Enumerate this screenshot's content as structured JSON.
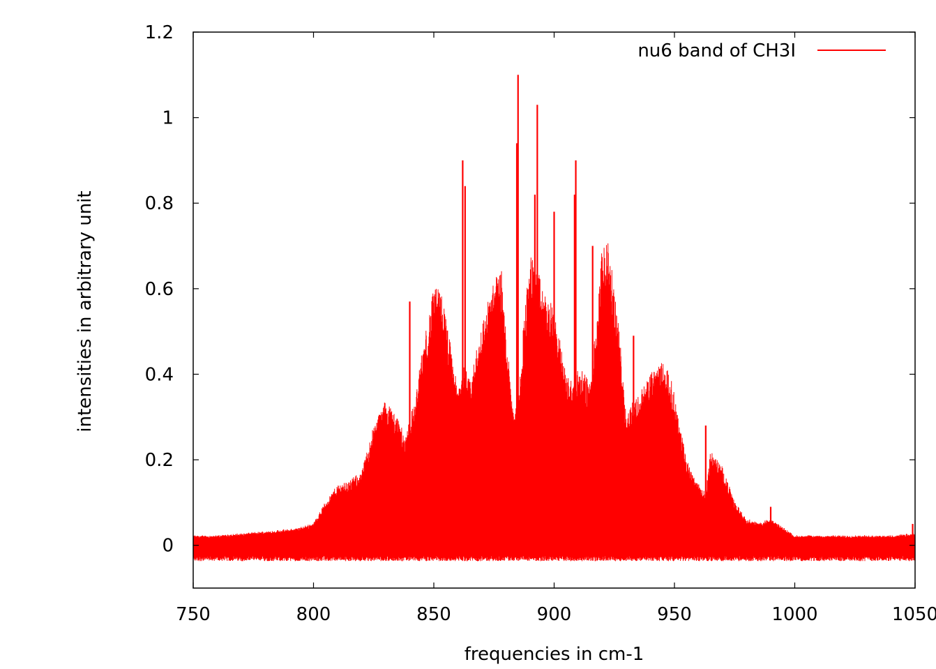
{
  "chart_data": {
    "type": "line",
    "title": "",
    "xlabel": "frequencies in cm-1",
    "ylabel": "intensities in arbitrary unit",
    "xlim": [
      750,
      1050
    ],
    "ylim": [
      -0.1,
      1.2
    ],
    "x_ticks": [
      750,
      800,
      850,
      900,
      950,
      1000,
      1050
    ],
    "x_tick_labels": [
      "750",
      "800",
      "850",
      "900",
      "950",
      "1000",
      "1050"
    ],
    "y_ticks": [
      0,
      0.2,
      0.4,
      0.6,
      0.8,
      1,
      1.2
    ],
    "y_tick_labels": [
      "0",
      "0.2",
      "0.4",
      "0.6",
      "0.8",
      "1",
      "1.2"
    ],
    "grid": false,
    "legend_position": "top-right",
    "series": [
      {
        "name": "nu6 band of CH3I",
        "color": "#ff0000",
        "envelope_upper": {
          "x": [
            750,
            760,
            770,
            780,
            790,
            795,
            800,
            805,
            810,
            815,
            820,
            825,
            830,
            835,
            838,
            840,
            842,
            845,
            850,
            853,
            856,
            860,
            862,
            865,
            870,
            875,
            878,
            880,
            883,
            885,
            887,
            890,
            893,
            895,
            900,
            905,
            908,
            910,
            915,
            918,
            920,
            922,
            925,
            928,
            930,
            932,
            935,
            940,
            945,
            948,
            950,
            955,
            960,
            963,
            965,
            970,
            975,
            980,
            985,
            990,
            995,
            1000,
            1010,
            1020,
            1030,
            1040,
            1050
          ],
          "y": [
            0.02,
            0.02,
            0.025,
            0.03,
            0.035,
            0.04,
            0.05,
            0.1,
            0.14,
            0.15,
            0.17,
            0.28,
            0.34,
            0.3,
            0.25,
            0.3,
            0.33,
            0.45,
            0.6,
            0.6,
            0.5,
            0.36,
            0.43,
            0.38,
            0.52,
            0.62,
            0.65,
            0.5,
            0.33,
            0.32,
            0.5,
            0.68,
            0.65,
            0.6,
            0.55,
            0.4,
            0.38,
            0.42,
            0.38,
            0.55,
            0.7,
            0.72,
            0.6,
            0.45,
            0.3,
            0.33,
            0.35,
            0.4,
            0.43,
            0.4,
            0.35,
            0.2,
            0.14,
            0.12,
            0.22,
            0.18,
            0.1,
            0.06,
            0.05,
            0.06,
            0.04,
            0.02,
            0.02,
            0.02,
            0.02,
            0.02,
            0.025
          ]
        },
        "baseline_lower": -0.025,
        "peaks": [
          {
            "x": 840,
            "y": 0.57
          },
          {
            "x": 862,
            "y": 0.9
          },
          {
            "x": 863,
            "y": 0.84
          },
          {
            "x": 885,
            "y": 1.1
          },
          {
            "x": 884.5,
            "y": 0.94
          },
          {
            "x": 893,
            "y": 1.03
          },
          {
            "x": 892,
            "y": 0.82
          },
          {
            "x": 900,
            "y": 0.78
          },
          {
            "x": 909,
            "y": 0.9
          },
          {
            "x": 908.5,
            "y": 0.82
          },
          {
            "x": 916,
            "y": 0.7
          },
          {
            "x": 933,
            "y": 0.49
          },
          {
            "x": 963,
            "y": 0.28
          },
          {
            "x": 990,
            "y": 0.09
          },
          {
            "x": 1049,
            "y": 0.05
          }
        ]
      }
    ]
  }
}
